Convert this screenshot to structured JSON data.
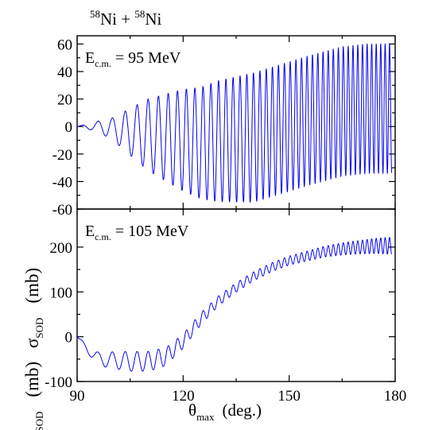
{
  "figure": {
    "title_mass_a": "58",
    "title_sym_a": "Ni + ",
    "title_mass_b": "58",
    "title_sym_b": "Ni",
    "ylabel_main": "σ",
    "ylabel_sub": "SOD",
    "ylabel_unit": "(mb)",
    "xlabel_main": "θ",
    "xlabel_sub": "max",
    "xlabel_unit": "(deg.)",
    "line_color": "#0000ee"
  },
  "chart_data": [
    {
      "type": "line",
      "annotation": {
        "prefix": "E",
        "sub": "c.m.",
        "suffix": " = 95 MeV"
      },
      "xlim": [
        90,
        180
      ],
      "ylim": [
        -60,
        66
      ],
      "yticks": [
        -60,
        -40,
        -20,
        0,
        20,
        40,
        60
      ],
      "xticks": [
        90,
        120,
        150,
        180
      ],
      "show_x_ticklabels": false,
      "series": [
        {
          "x_range": [
            90,
            179
          ],
          "mean": [
            [
              90,
              0
            ],
            [
              96,
              0
            ],
            [
              110,
              -6
            ],
            [
              125,
              -12
            ],
            [
              140,
              -8
            ],
            [
              155,
              4
            ],
            [
              165,
              11
            ],
            [
              172,
              13
            ],
            [
              179,
              13
            ]
          ],
          "amplitude": [
            [
              90,
              0
            ],
            [
              93,
              2
            ],
            [
              95,
              3
            ],
            [
              100,
              8
            ],
            [
              110,
              26
            ],
            [
              120,
              37
            ],
            [
              130,
              44
            ],
            [
              140,
              47
            ],
            [
              150,
              47
            ],
            [
              160,
              47
            ],
            [
              170,
              47
            ],
            [
              179,
              47
            ]
          ]
        }
      ]
    },
    {
      "type": "line",
      "annotation": {
        "prefix": "E",
        "sub": "c.m.",
        "suffix": " = 105 MeV"
      },
      "xlim": [
        90,
        180
      ],
      "ylim": [
        -100,
        285
      ],
      "yticks": [
        -100,
        0,
        100,
        200
      ],
      "xticks": [
        90,
        120,
        150,
        180
      ],
      "show_x_ticklabels": true,
      "series": [
        {
          "x_range": [
            90,
            179
          ],
          "mean": [
            [
              90,
              0
            ],
            [
              92,
              -20
            ],
            [
              96,
              -50
            ],
            [
              100,
              -52
            ],
            [
              105,
              -55
            ],
            [
              110,
              -55
            ],
            [
              115,
              -45
            ],
            [
              120,
              -10
            ],
            [
              125,
              40
            ],
            [
              130,
              80
            ],
            [
              135,
              110
            ],
            [
              140,
              135
            ],
            [
              145,
              155
            ],
            [
              150,
              170
            ],
            [
              155,
              180
            ],
            [
              160,
              190
            ],
            [
              165,
              196
            ],
            [
              170,
              200
            ],
            [
              175,
              203
            ],
            [
              179,
              203
            ]
          ],
          "amplitude": [
            [
              90,
              0
            ],
            [
              92,
              8
            ],
            [
              96,
              15
            ],
            [
              105,
              22
            ],
            [
              112,
              22
            ],
            [
              120,
              16
            ],
            [
              130,
              11
            ],
            [
              140,
              10
            ],
            [
              150,
              10
            ],
            [
              160,
              12
            ],
            [
              170,
              15
            ],
            [
              179,
              19
            ]
          ]
        }
      ]
    }
  ]
}
